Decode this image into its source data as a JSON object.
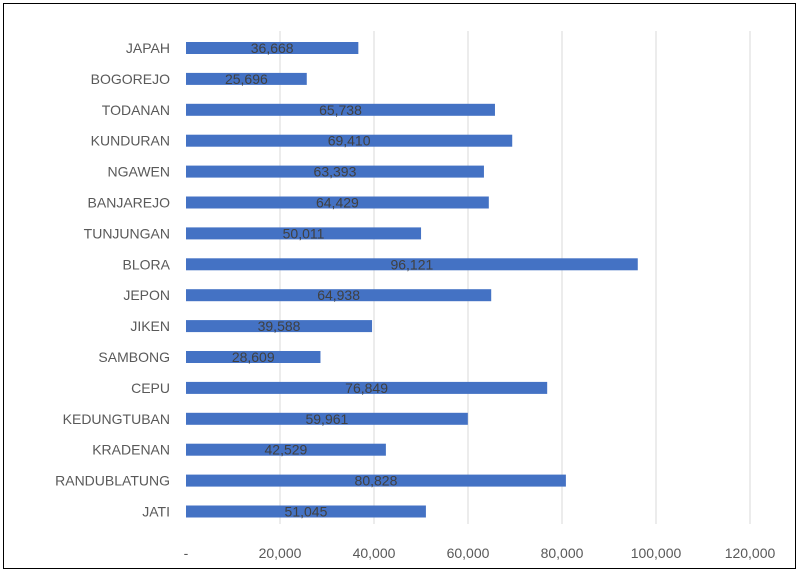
{
  "chart_data": {
    "type": "bar",
    "orientation": "horizontal",
    "categories": [
      "JAPAH",
      "BOGOREJO",
      "TODANAN",
      "KUNDURAN",
      "NGAWEN",
      "BANJAREJO",
      "TUNJUNGAN",
      "BLORA",
      "JEPON",
      "JIKEN",
      "SAMBONG",
      "CEPU",
      "KEDUNGTUBAN",
      "KRADENAN",
      "RANDUBLATUNG",
      "JATI"
    ],
    "values": [
      36668,
      25696,
      65738,
      69410,
      63393,
      64429,
      50011,
      96121,
      64938,
      39588,
      28609,
      76849,
      59961,
      42529,
      80828,
      51045
    ],
    "data_labels": [
      "36,668",
      "25,696",
      "65,738",
      "69,410",
      "63,393",
      "64,429",
      "50,011",
      "96,121",
      "64,938",
      "39,588",
      "28,609",
      "76,849",
      "59,961",
      "42,529",
      "80,828",
      "51,045"
    ],
    "xticks": [
      0,
      20000,
      40000,
      60000,
      80000,
      100000,
      120000
    ],
    "xtick_labels": [
      "-",
      "20,000",
      "40,000",
      "60,000",
      "80,000",
      "100,000",
      "120,000"
    ],
    "xlim": [
      0,
      120000
    ],
    "grid": true,
    "legend": "none",
    "title": "",
    "xlabel": "",
    "ylabel": "",
    "colors": {
      "bar": "#4472C4",
      "grid": "#D9D9D9",
      "frame": "#000000"
    }
  }
}
